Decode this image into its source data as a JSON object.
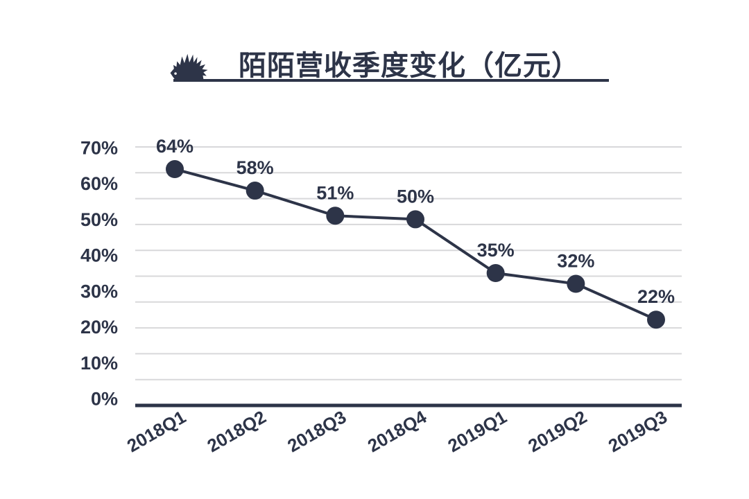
{
  "page": {
    "background": "#ffffff"
  },
  "header": {
    "title": "陌陌营收季度变化（亿元）",
    "icon": "hedgehog-icon"
  },
  "colors": {
    "ink": "#2d3448",
    "grid": "#d8d8da",
    "background": "#ffffff",
    "marker_eye": "#ffffff"
  },
  "chart_data": {
    "type": "line",
    "title": "陌陌营收季度变化（亿元）",
    "categories": [
      "2018Q1",
      "2018Q2",
      "2018Q3",
      "2018Q4",
      "2019Q1",
      "2019Q2",
      "2019Q3"
    ],
    "values": [
      64,
      58,
      51,
      50,
      35,
      32,
      22
    ],
    "point_labels": [
      "64%",
      "58%",
      "51%",
      "50%",
      "35%",
      "32%",
      "22%"
    ],
    "unit": "%",
    "y_ticks": [
      "70%",
      "60%",
      "50%",
      "40%",
      "30%",
      "20%",
      "10%",
      "0%"
    ],
    "ylim": [
      0,
      70
    ],
    "grid": true,
    "legend": "none",
    "marker": "circle",
    "x_label_rotation_deg": -30
  }
}
